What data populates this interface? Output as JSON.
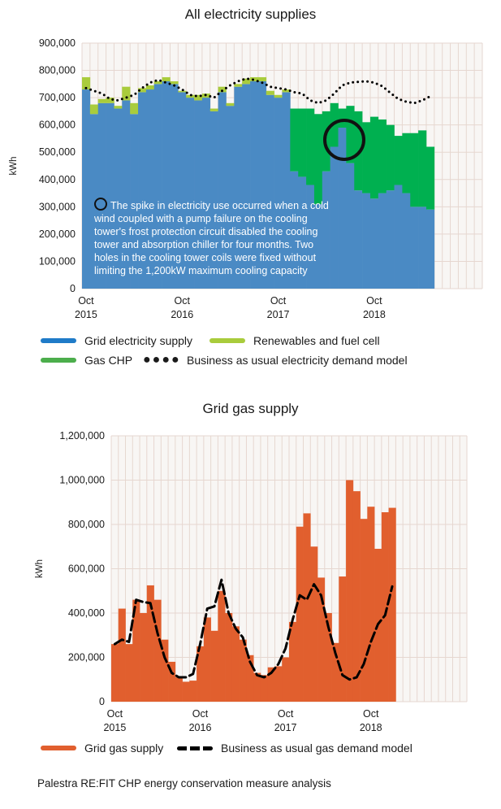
{
  "chart_data": [
    {
      "type": "bar",
      "title": "All electricity supplies",
      "ylabel": "kWh",
      "ylim": [
        0,
        900000
      ],
      "yticks": [
        "0",
        "100,000",
        "200,000",
        "300,000",
        "400,000",
        "500,000",
        "600,000",
        "700,000",
        "800,000",
        "900,000"
      ],
      "xticks": [
        {
          "label": "Oct",
          "year": "2015"
        },
        {
          "label": "Oct",
          "year": "2016"
        },
        {
          "label": "Oct",
          "year": "2017"
        },
        {
          "label": "Oct",
          "year": "2018"
        }
      ],
      "grid": true,
      "legend": "bottom",
      "months_total": 50,
      "series": [
        {
          "name": "Grid electricity supply",
          "color": "#4a8ac4",
          "values": [
            730000,
            640000,
            680000,
            680000,
            660000,
            690000,
            640000,
            720000,
            730000,
            750000,
            760000,
            750000,
            720000,
            700000,
            690000,
            700000,
            650000,
            720000,
            670000,
            740000,
            750000,
            760000,
            760000,
            710000,
            700000,
            720000,
            430000,
            410000,
            380000,
            310000,
            430000,
            520000,
            590000,
            460000,
            360000,
            350000,
            330000,
            350000,
            360000,
            380000,
            350000,
            300000,
            300000,
            290000
          ]
        },
        {
          "name": "Renewables and fuel cell",
          "color": "#a9cc3c",
          "values": [
            45000,
            35000,
            15000,
            20000,
            10000,
            50000,
            40000,
            15000,
            15000,
            10000,
            15000,
            10000,
            5000,
            10000,
            20000,
            15000,
            10000,
            20000,
            10000,
            10000,
            20000,
            15000,
            15000,
            15000,
            10000,
            10000,
            0,
            0,
            0,
            0,
            0,
            0,
            0,
            0,
            0,
            0,
            0,
            0,
            0,
            0,
            0,
            0,
            0,
            0
          ]
        },
        {
          "name": "Gas CHP",
          "color": "#00b050",
          "values": [
            0,
            0,
            0,
            0,
            0,
            0,
            0,
            0,
            0,
            0,
            0,
            0,
            0,
            0,
            0,
            0,
            0,
            0,
            0,
            0,
            0,
            0,
            0,
            0,
            0,
            0,
            230000,
            250000,
            280000,
            330000,
            220000,
            160000,
            70000,
            210000,
            290000,
            260000,
            300000,
            270000,
            240000,
            180000,
            220000,
            270000,
            280000,
            230000
          ]
        },
        {
          "name": "Business as usual electricity demand model",
          "color": "#000000",
          "style": "dotted",
          "values": [
            735000,
            725000,
            715000,
            695000,
            690000,
            700000,
            710000,
            735000,
            755000,
            765000,
            755000,
            745000,
            730000,
            710000,
            705000,
            710000,
            700000,
            725000,
            745000,
            760000,
            770000,
            765000,
            755000,
            740000,
            735000,
            730000,
            720000,
            715000,
            690000,
            680000,
            690000,
            715000,
            745000,
            755000,
            758000,
            760000,
            755000,
            742000,
            718000,
            695000,
            685000,
            680000,
            690000,
            705000
          ]
        }
      ]
    },
    {
      "type": "bar",
      "title": "Grid gas supply",
      "ylabel": "kWh",
      "ylim": [
        0,
        1200000
      ],
      "yticks": [
        "0",
        "200,000",
        "400,000",
        "600,000",
        "800,000",
        "1,000,000",
        "1,200,000"
      ],
      "xticks": [
        {
          "label": "Oct",
          "year": "2015"
        },
        {
          "label": "Oct",
          "year": "2016"
        },
        {
          "label": "Oct",
          "year": "2017"
        },
        {
          "label": "Oct",
          "year": "2018"
        }
      ],
      "grid": true,
      "legend": "bottom",
      "months_total": 50,
      "series": [
        {
          "name": "Grid gas supply",
          "color": "#e15f2e",
          "values": [
            260000,
            420000,
            260000,
            460000,
            400000,
            525000,
            460000,
            280000,
            180000,
            110000,
            90000,
            95000,
            250000,
            380000,
            320000,
            500000,
            400000,
            340000,
            280000,
            210000,
            130000,
            120000,
            155000,
            160000,
            200000,
            360000,
            790000,
            850000,
            700000,
            560000,
            400000,
            265000,
            565000,
            1000000,
            950000,
            825000,
            880000,
            690000,
            855000,
            875000
          ]
        },
        {
          "name": "Business as usual gas demand model",
          "color": "#000000",
          "style": "dashed",
          "values": [
            260000,
            280000,
            270000,
            460000,
            450000,
            445000,
            310000,
            200000,
            130000,
            110000,
            110000,
            125000,
            260000,
            420000,
            430000,
            550000,
            400000,
            330000,
            290000,
            180000,
            120000,
            110000,
            130000,
            170000,
            240000,
            370000,
            480000,
            460000,
            530000,
            480000,
            340000,
            220000,
            120000,
            100000,
            110000,
            170000,
            270000,
            350000,
            390000,
            520000
          ]
        }
      ]
    }
  ],
  "legend_top": {
    "grid": "Grid electricity supply",
    "renew": "Renewables and fuel cell",
    "chp": "Gas CHP",
    "bau": "Business as usual electricity demand model"
  },
  "legend_bottom": {
    "gas": "Grid gas supply",
    "bau": "Business as usual gas demand model"
  },
  "annotation": "The spike in electricity use occurred when a cold wind coupled with a pump failure on the cooling tower's frost protection circuit disabled the cooling tower and absorption chiller for four months. Two holes in the cooling tower coils were fixed without limiting the 1,200kW maximum cooling capacity",
  "footer": "Palestra RE:FIT CHP energy conservation measure analysis",
  "colors": {
    "grid": "#4a8ac4",
    "renew": "#a9cc3c",
    "chp": "#00b050",
    "gas": "#e15f2e",
    "gridline": "#e6d7d0",
    "plotbg": "#f8f6f4"
  }
}
